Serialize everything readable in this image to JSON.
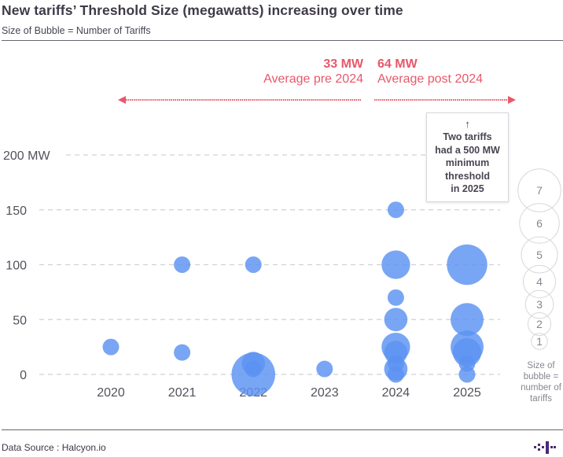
{
  "header": {
    "title": "New tariffs’ Threshold Size (megawatts) increasing over time",
    "subtitle": "Size of Bubble = Number of Tariffs"
  },
  "annotations": {
    "pre": {
      "value": "33 MW",
      "label": "Average pre 2024"
    },
    "post": {
      "value": "64 MW",
      "label": "Average post 2024"
    },
    "note": {
      "arrow": "↑",
      "lines": [
        "Two tariffs",
        "had a 500 MW",
        "minimum",
        "threshold",
        "in 2025"
      ]
    },
    "accent_color": "#e8586a"
  },
  "legend": {
    "sizes": [
      "7",
      "6",
      "5",
      "4",
      "3",
      "2",
      "1"
    ],
    "caption": [
      "Size of",
      "bubble =",
      "number of",
      "tariffs"
    ]
  },
  "footer": {
    "source": "Data Source : Halcyon.io",
    "logo": "halcyon-logo-icon"
  },
  "chart_data": {
    "type": "scatter",
    "subtype": "bubble",
    "title": "New tariffs’ Threshold Size (megawatts) increasing over time",
    "subtitle": "Size of Bubble = Number of Tariffs",
    "xlabel": "",
    "ylabel": "",
    "categories": [
      "2020",
      "2021",
      "2022",
      "2023",
      "2024",
      "2025"
    ],
    "y_ticks": [
      0,
      50,
      100,
      150,
      200
    ],
    "y_tick_labels": [
      "0",
      "50",
      "100",
      "150",
      "200 MW"
    ],
    "ylim": [
      0,
      200
    ],
    "grid": true,
    "bubble_color": "#5b93f2",
    "points": [
      {
        "x": "2020",
        "y": 25,
        "count": 1
      },
      {
        "x": "2021",
        "y": 100,
        "count": 1
      },
      {
        "x": "2021",
        "y": 20,
        "count": 1
      },
      {
        "x": "2022",
        "y": 100,
        "count": 1
      },
      {
        "x": "2022",
        "y": 0,
        "count": 7
      },
      {
        "x": "2022",
        "y": 10,
        "count": 2
      },
      {
        "x": "2022",
        "y": 5,
        "count": 1
      },
      {
        "x": "2023",
        "y": 5,
        "count": 1
      },
      {
        "x": "2024",
        "y": 150,
        "count": 1
      },
      {
        "x": "2024",
        "y": 100,
        "count": 3
      },
      {
        "x": "2024",
        "y": 70,
        "count": 1
      },
      {
        "x": "2024",
        "y": 50,
        "count": 2
      },
      {
        "x": "2024",
        "y": 25,
        "count": 3
      },
      {
        "x": "2024",
        "y": 20,
        "count": 2
      },
      {
        "x": "2024",
        "y": 10,
        "count": 1
      },
      {
        "x": "2024",
        "y": 5,
        "count": 2
      },
      {
        "x": "2024",
        "y": 0,
        "count": 1
      },
      {
        "x": "2025",
        "y": 100,
        "count": 6
      },
      {
        "x": "2025",
        "y": 50,
        "count": 4
      },
      {
        "x": "2025",
        "y": 25,
        "count": 4
      },
      {
        "x": "2025",
        "y": 20,
        "count": 3
      },
      {
        "x": "2025",
        "y": 10,
        "count": 1
      },
      {
        "x": "2025",
        "y": 0,
        "count": 1
      }
    ],
    "reference_averages": [
      {
        "label": "Average pre 2024",
        "value": 33,
        "unit": "MW"
      },
      {
        "label": "Average post 2024",
        "value": 64,
        "unit": "MW"
      }
    ],
    "legend_placement": "right"
  }
}
